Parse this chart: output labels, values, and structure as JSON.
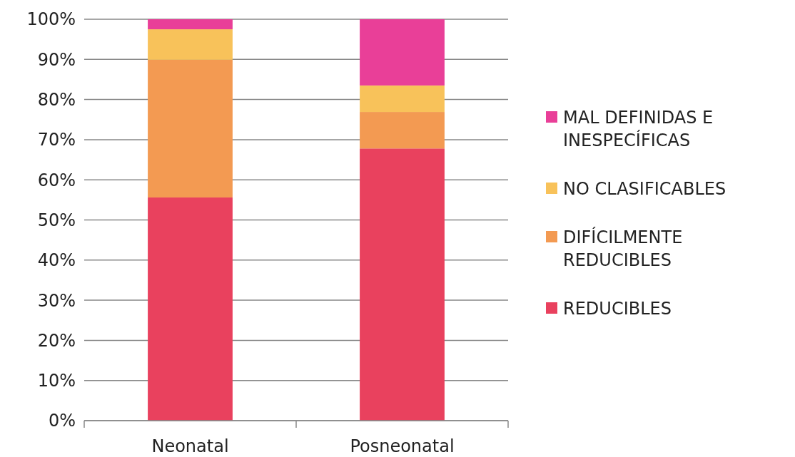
{
  "chart_data": {
    "type": "bar",
    "stacked": true,
    "categories": [
      "Neonatal",
      "Posneonatal"
    ],
    "series": [
      {
        "name": "REDUCIBLES",
        "color": "#e9415e",
        "values": [
          55.6,
          67.8
        ]
      },
      {
        "name": "DIFÍCILMENTE REDUCIBLES",
        "color": "#f39a52",
        "values": [
          34.3,
          9.1
        ]
      },
      {
        "name": "NO CLASIFICABLES",
        "color": "#f8c25a",
        "values": [
          7.6,
          6.6
        ]
      },
      {
        "name": "MAL DEFINIDAS E INESPECÍFICAS",
        "color": "#e93f98",
        "values": [
          2.5,
          16.5
        ]
      }
    ],
    "ylim": [
      0,
      100
    ],
    "yticks": [
      {
        "value": 0,
        "label": "0%"
      },
      {
        "value": 10,
        "label": "10%"
      },
      {
        "value": 20,
        "label": "20%"
      },
      {
        "value": 30,
        "label": "30%"
      },
      {
        "value": 40,
        "label": "40%"
      },
      {
        "value": 50,
        "label": "50%"
      },
      {
        "value": 60,
        "label": "60%"
      },
      {
        "value": 70,
        "label": "70%"
      },
      {
        "value": 80,
        "label": "80%"
      },
      {
        "value": 90,
        "label": "90%"
      },
      {
        "value": 100,
        "label": "100%"
      }
    ],
    "grid": "y",
    "legend": "right"
  }
}
